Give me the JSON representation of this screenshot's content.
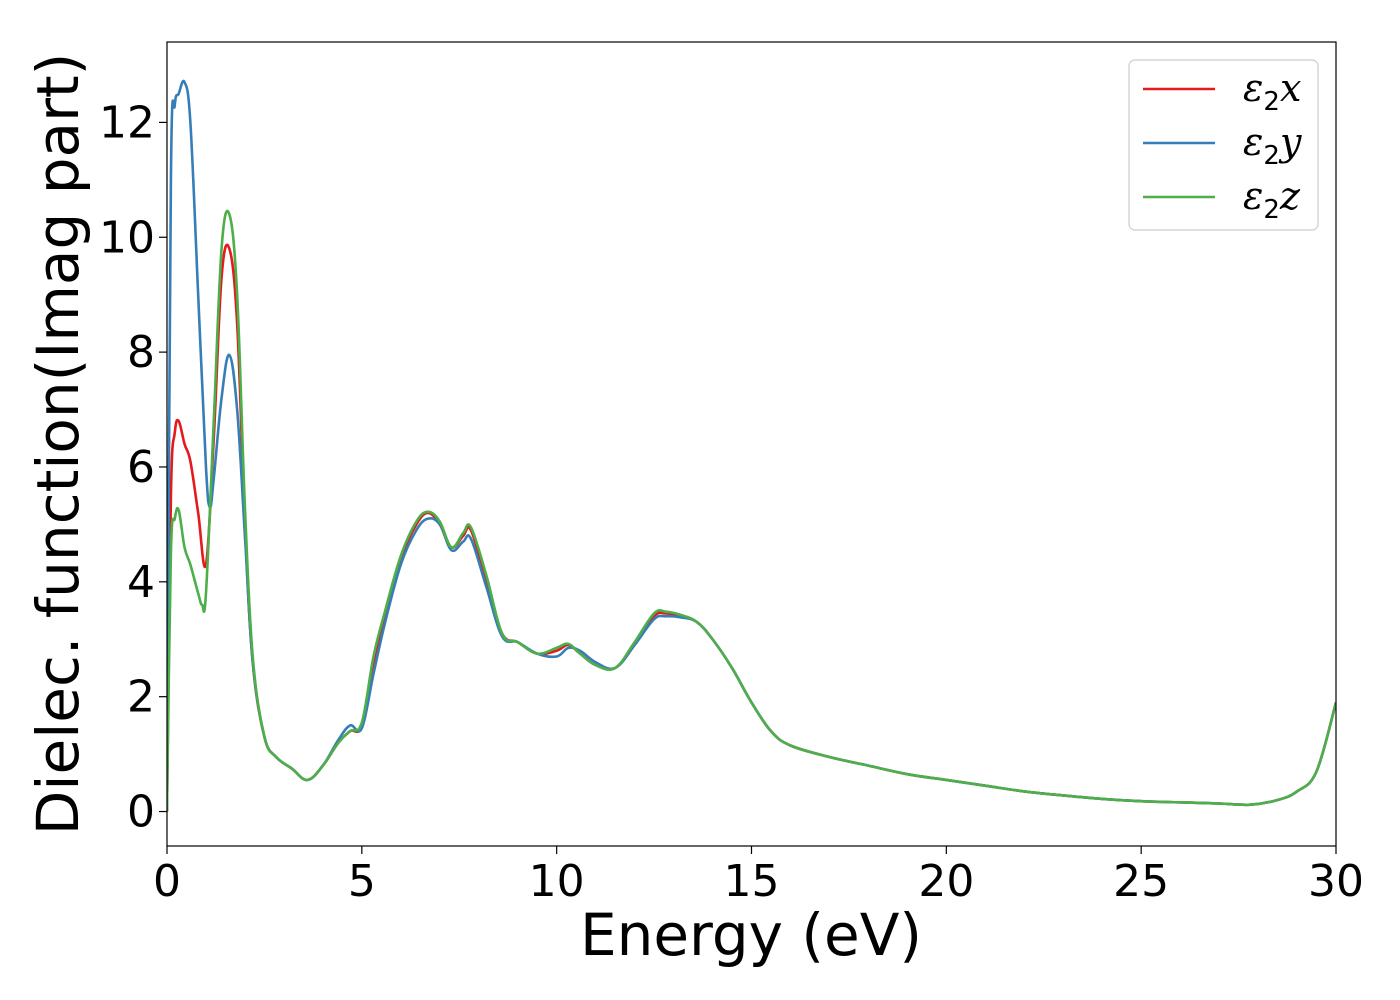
{
  "chart_data": {
    "type": "line",
    "xlabel": "Energy (eV)",
    "ylabel": "Dielec. function(Imag part)",
    "xlim": [
      0,
      30
    ],
    "ylim": [
      -0.6,
      13.4
    ],
    "xticks": [
      0,
      5,
      10,
      15,
      20,
      25,
      30
    ],
    "yticks": [
      0,
      2,
      4,
      6,
      8,
      10,
      12
    ],
    "grid": false,
    "legend_position": "top-right",
    "series": [
      {
        "name": "ε2x",
        "label_main": "ε",
        "label_sub": "2",
        "label_suffix": "x",
        "color": "#e41a1c",
        "x": [
          0,
          0.1,
          0.2,
          0.3,
          0.45,
          0.6,
          0.8,
          1.0,
          1.2,
          1.4,
          1.6,
          1.8,
          2.0,
          2.2,
          2.5,
          2.8,
          3.2,
          3.6,
          4.0,
          4.4,
          4.7,
          5.0,
          5.3,
          5.6,
          6.0,
          6.4,
          6.7,
          7.0,
          7.3,
          7.6,
          7.8,
          8.2,
          8.6,
          9.0,
          9.5,
          10.0,
          10.3,
          10.6,
          11.0,
          11.5,
          12.0,
          12.5,
          12.8,
          13.2,
          13.6,
          14.0,
          14.5,
          15.0,
          15.5,
          16.0,
          17.0,
          18.0,
          19.0,
          20.0,
          21.0,
          22.0,
          23.0,
          24.0,
          25.0,
          26.0,
          27.0,
          27.8,
          28.5,
          29.0,
          29.5,
          30.0
        ],
        "values": [
          0,
          5.5,
          6.6,
          6.8,
          6.4,
          6.1,
          5.2,
          4.3,
          6.5,
          9.3,
          9.8,
          8.5,
          5.0,
          2.6,
          1.3,
          0.95,
          0.75,
          0.55,
          0.8,
          1.2,
          1.4,
          1.5,
          2.6,
          3.4,
          4.4,
          5.0,
          5.2,
          5.0,
          4.6,
          4.8,
          4.9,
          4.0,
          3.1,
          2.95,
          2.75,
          2.8,
          2.9,
          2.75,
          2.55,
          2.5,
          2.9,
          3.4,
          3.45,
          3.4,
          3.3,
          3.0,
          2.5,
          1.9,
          1.4,
          1.15,
          0.95,
          0.8,
          0.65,
          0.55,
          0.45,
          0.35,
          0.28,
          0.22,
          0.18,
          0.16,
          0.14,
          0.12,
          0.2,
          0.35,
          0.7,
          1.9
        ]
      },
      {
        "name": "ε2y",
        "label_main": "ε",
        "label_sub": "2",
        "label_suffix": "y",
        "color": "#377eb8",
        "x": [
          0,
          0.1,
          0.2,
          0.3,
          0.45,
          0.6,
          0.8,
          1.0,
          1.1,
          1.2,
          1.4,
          1.6,
          1.8,
          2.0,
          2.2,
          2.5,
          2.8,
          3.2,
          3.6,
          4.0,
          4.4,
          4.7,
          5.0,
          5.3,
          5.6,
          6.0,
          6.4,
          6.7,
          7.0,
          7.3,
          7.6,
          7.8,
          8.2,
          8.6,
          9.0,
          9.5,
          10.0,
          10.3,
          10.6,
          11.0,
          11.5,
          12.0,
          12.5,
          12.8,
          13.2,
          13.6,
          14.0,
          14.5,
          15.0,
          15.5,
          16.0,
          17.0,
          18.0,
          19.0,
          20.0,
          21.0,
          22.0,
          23.0,
          24.0,
          25.0,
          26.0,
          27.0,
          27.8,
          28.5,
          29.0,
          29.5,
          30.0
        ],
        "values": [
          0,
          11.0,
          12.3,
          12.5,
          12.7,
          12.0,
          9.0,
          6.0,
          5.3,
          5.8,
          7.2,
          7.95,
          7.0,
          4.8,
          2.6,
          1.3,
          0.95,
          0.75,
          0.55,
          0.8,
          1.25,
          1.5,
          1.45,
          2.4,
          3.3,
          4.3,
          4.9,
          5.1,
          5.0,
          4.55,
          4.7,
          4.75,
          3.9,
          3.05,
          2.95,
          2.75,
          2.7,
          2.85,
          2.8,
          2.6,
          2.5,
          2.9,
          3.35,
          3.4,
          3.38,
          3.3,
          3.0,
          2.5,
          1.9,
          1.4,
          1.15,
          0.95,
          0.8,
          0.65,
          0.55,
          0.45,
          0.35,
          0.28,
          0.22,
          0.18,
          0.16,
          0.14,
          0.12,
          0.2,
          0.35,
          0.7,
          1.9
        ]
      },
      {
        "name": "ε2z",
        "label_main": "ε",
        "label_sub": "2",
        "label_suffix": "z",
        "color": "#4daf4a",
        "x": [
          0,
          0.1,
          0.2,
          0.3,
          0.45,
          0.6,
          0.8,
          0.9,
          1.0,
          1.2,
          1.4,
          1.6,
          1.8,
          2.0,
          2.2,
          2.5,
          2.8,
          3.2,
          3.6,
          4.0,
          4.4,
          4.7,
          5.0,
          5.3,
          5.6,
          6.0,
          6.4,
          6.7,
          7.0,
          7.3,
          7.6,
          7.8,
          8.2,
          8.6,
          9.0,
          9.5,
          10.0,
          10.3,
          10.6,
          11.0,
          11.5,
          12.0,
          12.5,
          12.8,
          13.2,
          13.6,
          14.0,
          14.5,
          15.0,
          15.5,
          16.0,
          17.0,
          18.0,
          19.0,
          20.0,
          21.0,
          22.0,
          23.0,
          24.0,
          25.0,
          26.0,
          27.0,
          27.8,
          28.5,
          29.0,
          29.5,
          30.0
        ],
        "values": [
          0,
          4.5,
          5.1,
          5.25,
          4.6,
          4.3,
          3.8,
          3.6,
          3.8,
          6.8,
          9.8,
          10.4,
          9.0,
          5.3,
          2.7,
          1.3,
          0.95,
          0.75,
          0.55,
          0.8,
          1.2,
          1.4,
          1.55,
          2.7,
          3.5,
          4.45,
          5.05,
          5.22,
          5.05,
          4.6,
          4.85,
          4.95,
          4.1,
          3.1,
          2.95,
          2.75,
          2.85,
          2.92,
          2.75,
          2.55,
          2.5,
          2.95,
          3.45,
          3.48,
          3.42,
          3.3,
          3.0,
          2.5,
          1.9,
          1.4,
          1.15,
          0.95,
          0.8,
          0.65,
          0.55,
          0.45,
          0.35,
          0.28,
          0.22,
          0.18,
          0.16,
          0.14,
          0.12,
          0.2,
          0.35,
          0.7,
          1.9
        ]
      }
    ]
  }
}
